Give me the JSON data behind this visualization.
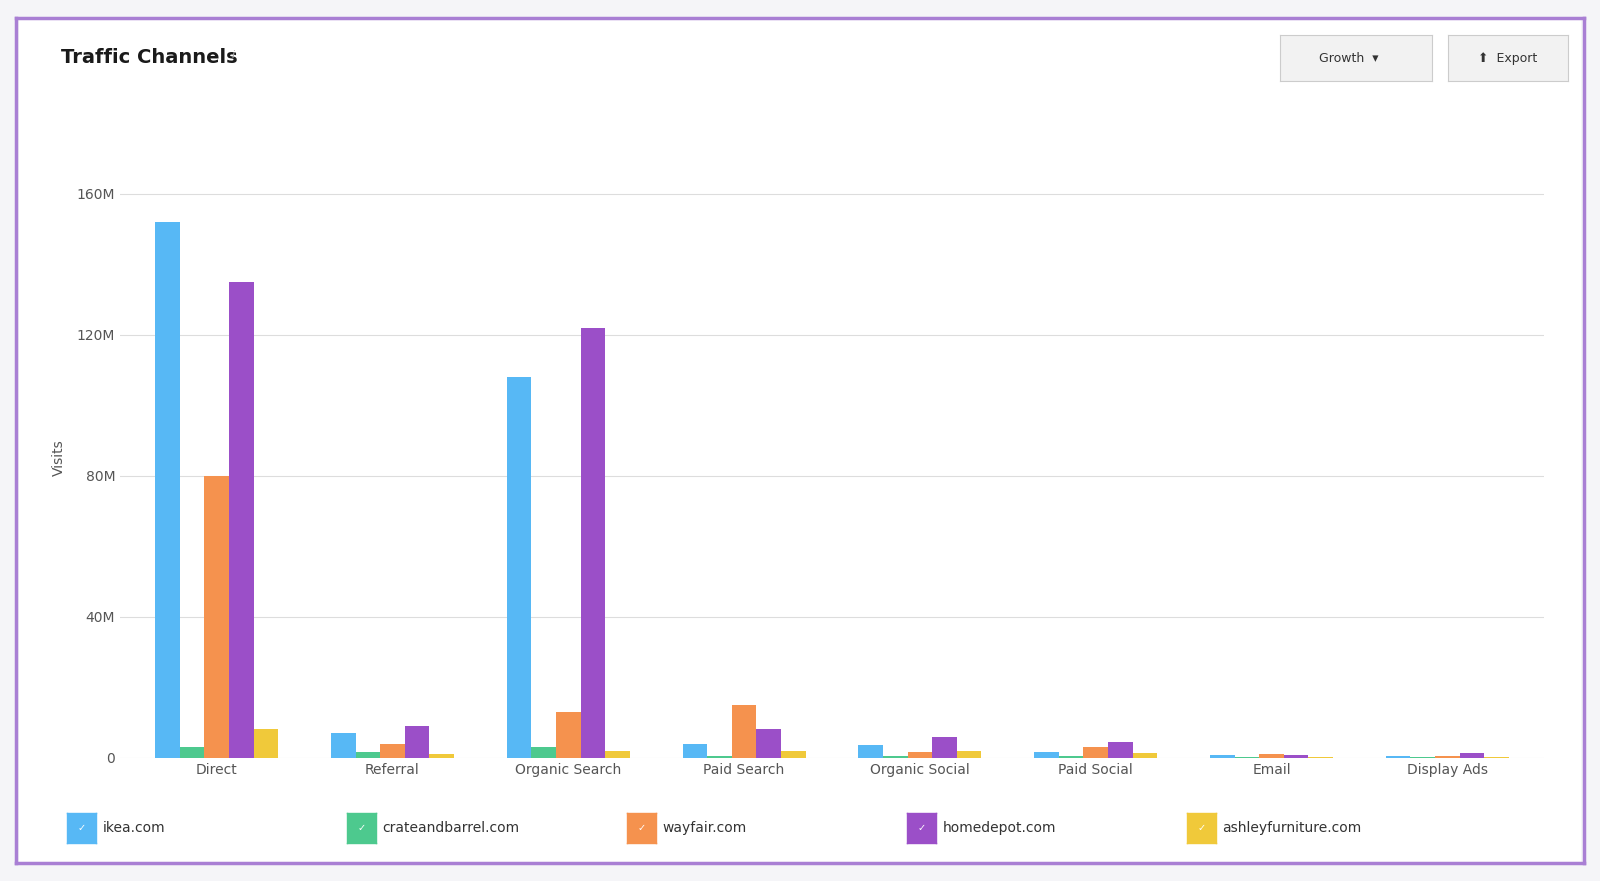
{
  "title": "Traffic Channels",
  "ylabel": "Visits",
  "categories": [
    "Direct",
    "Referral",
    "Organic Search",
    "Paid Search",
    "Organic Social",
    "Paid Social",
    "Email",
    "Display Ads"
  ],
  "sites": [
    "ikea.com",
    "crateandbarrel.com",
    "wayfair.com",
    "homedepot.com",
    "ashleyfurniture.com"
  ],
  "colors": [
    "#57b8f5",
    "#4dc98e",
    "#f5924e",
    "#9b4fc8",
    "#f0c93a"
  ],
  "ylim": [
    0,
    170000000
  ],
  "yticks": [
    0,
    40000000,
    80000000,
    120000000,
    160000000
  ],
  "ytick_labels": [
    "0",
    "40M",
    "80M",
    "120M",
    "160M"
  ],
  "data": {
    "ikea.com": [
      152000000,
      7000000,
      108000000,
      4000000,
      3500000,
      1500000,
      800000,
      500000
    ],
    "crateandbarrel.com": [
      3000000,
      1500000,
      3000000,
      600000,
      600000,
      400000,
      200000,
      150000
    ],
    "wayfair.com": [
      80000000,
      4000000,
      13000000,
      15000000,
      1500000,
      3000000,
      1000000,
      500000
    ],
    "homedepot.com": [
      135000000,
      9000000,
      122000000,
      8000000,
      6000000,
      4500000,
      800000,
      1200000
    ],
    "ashleyfurniture.com": [
      8000000,
      1000000,
      2000000,
      2000000,
      1800000,
      1200000,
      300000,
      200000
    ]
  },
  "background_color": "#ffffff",
  "border_color": "#a97fd4",
  "grid_color": "#dddddd",
  "fig_bg": "#f5f5f8",
  "title_fontsize": 14,
  "axis_fontsize": 10,
  "tick_fontsize": 10,
  "legend_fontsize": 10
}
